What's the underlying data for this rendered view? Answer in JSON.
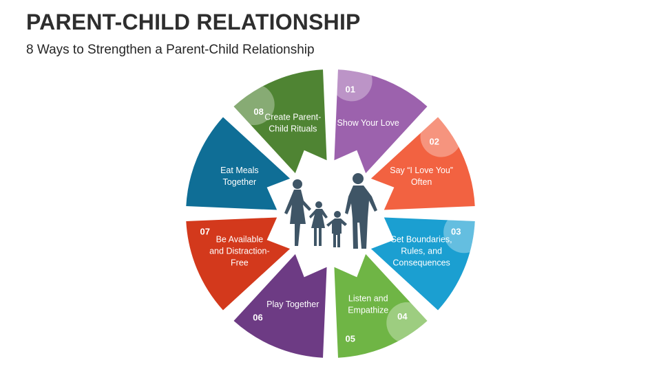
{
  "title": "PARENT-CHILD RELATIONSHIP",
  "subtitle": "8 Ways to Strengthen a Parent-Child Relationship",
  "center_icon": "family-silhouette-icon",
  "segments": [
    {
      "number": "01",
      "label": [
        "Show Your Love"
      ],
      "color": "#9c62ad"
    },
    {
      "number": "02",
      "label": [
        "Say “I Love You”",
        "Often"
      ],
      "color": "#f26241"
    },
    {
      "number": "03",
      "label": [
        "Set Boundaries,",
        "Rules, and",
        "Consequences"
      ],
      "color": "#1b9fd1"
    },
    {
      "number": "04",
      "label": [
        "Listen and",
        "Empathize"
      ],
      "color": "#6fb545"
    },
    {
      "number": "05",
      "label": [
        "Play Together"
      ],
      "color": "#6d3b84"
    },
    {
      "number": "06",
      "label": [
        "Be Available",
        "and Distraction-",
        "Free"
      ],
      "color": "#d3391c"
    },
    {
      "number": "07",
      "label": [
        "Eat Meals",
        "Together"
      ],
      "color": "#0f6e96"
    },
    {
      "number": "08",
      "label": [
        "Create Parent-",
        "Child Rituals"
      ],
      "color": "#4f8433"
    }
  ]
}
